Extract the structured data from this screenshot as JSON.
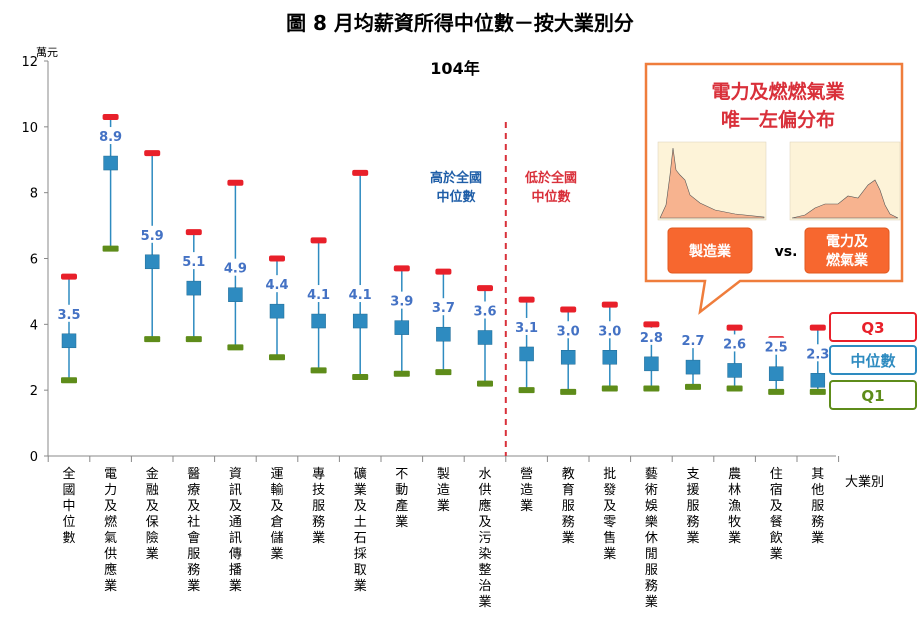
{
  "title": "圖 8 月均薪資所得中位數－按大業別分",
  "subtitle": "104年",
  "colors": {
    "q3": "#e8202a",
    "median": "#2e8bc0",
    "q1": "#5e8c1a",
    "whisker": "#2e8bc0",
    "value_label": "#1f5ea8",
    "divider": "#d9303a",
    "callout_border": "#ef7d3c",
    "callout_button": "#f7672f",
    "dist_fill": "#f7b38f",
    "dist_bg": "#fdf3d8"
  },
  "annotations": {
    "above": [
      "高於全國",
      "中位數"
    ],
    "below": [
      "低於全國",
      "中位數"
    ]
  },
  "callout": {
    "title_line1": "電力及燃燃氣業",
    "title_line2": "唯一左偏分布",
    "left_button": "製造業",
    "vs": "vs.",
    "right_button_line1": "電力及",
    "right_button_line2": "燃氣業"
  },
  "legend": {
    "q3": "Q3",
    "median": "中位數",
    "q1": "Q1"
  },
  "chart_data": {
    "type": "box",
    "title": "圖 8 月均薪資所得中位數－按大業別分",
    "subtitle": "104年",
    "ylabel": "萬元",
    "xlabel": "大業別",
    "ylim": [
      0,
      12
    ],
    "yticks": [
      0,
      2,
      4,
      6,
      8,
      10,
      12
    ],
    "divider_after_index": 10,
    "categories": [
      "全國中位數",
      "電力及燃氣供應業",
      "金融及保險業",
      "醫療及社會服務業",
      "資訊及通訊傳播業",
      "運輸及倉儲業",
      "專技服務業",
      "礦業及土石採取業",
      "不動產業",
      "製造業",
      "水供應及污染整治業",
      "營造業",
      "教育服務業",
      "批發及零售業",
      "藝術娛樂休閒服務業",
      "支援服務業",
      "農林漁牧業",
      "住宿及餐飲業",
      "其他服務業"
    ],
    "median": [
      3.5,
      8.9,
      5.9,
      5.1,
      4.9,
      4.4,
      4.1,
      4.1,
      3.9,
      3.7,
      3.6,
      3.1,
      3.0,
      3.0,
      2.8,
      2.7,
      2.6,
      2.5,
      2.3
    ],
    "median_labels": [
      "3.5",
      "8.9",
      "5.9",
      "5.1",
      "4.9",
      "4.4",
      "4.1",
      "4.1",
      "3.9",
      "3.7",
      "3.6",
      "3.1",
      "3.0",
      "3.0",
      "2.8",
      "2.7",
      "2.6",
      "2.5",
      "2.3"
    ],
    "q3": [
      5.45,
      10.3,
      9.2,
      6.8,
      8.3,
      6.0,
      6.55,
      8.6,
      5.7,
      5.6,
      5.1,
      4.75,
      4.45,
      4.6,
      4.0,
      3.55,
      3.9,
      3.55,
      3.9
    ],
    "q1": [
      2.3,
      6.3,
      3.55,
      3.55,
      3.3,
      3.0,
      2.6,
      2.4,
      2.5,
      2.55,
      2.2,
      2.0,
      1.95,
      2.05,
      2.05,
      2.1,
      2.05,
      1.95,
      1.95
    ]
  }
}
